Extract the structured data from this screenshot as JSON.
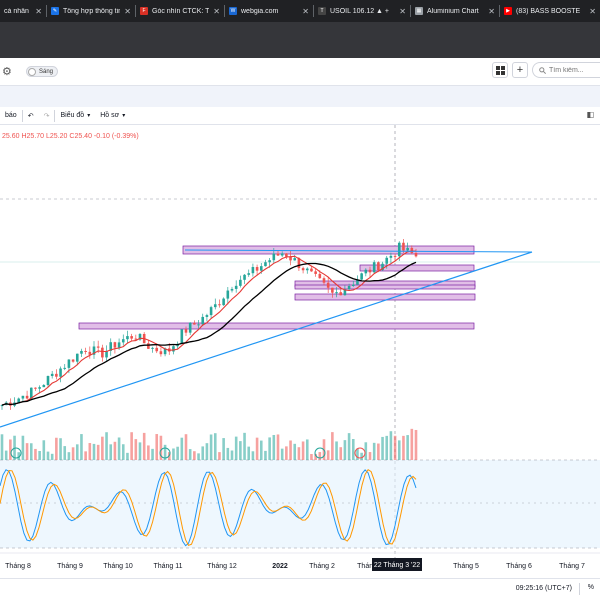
{
  "browser": {
    "tabs": [
      {
        "label": "cá nhân",
        "color": "#5f6368",
        "icon": "page-icon"
      },
      {
        "label": "Tổng hợp thông tin",
        "color": "#1a73e8",
        "icon": "quill-icon"
      },
      {
        "label": "Góc nhìn CTCK: Thị",
        "color": "#d93025",
        "icon": "f-logo-icon"
      },
      {
        "label": "webgia.com",
        "color": "#1967d2",
        "icon": "wg-logo-icon"
      },
      {
        "label": "USOIL 106.12 ▲ +",
        "color": "#2f2f2f",
        "icon": "tv-logo-icon"
      },
      {
        "label": "Aluminium Chart",
        "color": "#9aa0a6",
        "icon": "chart-icon"
      },
      {
        "label": "(83) BASS BOOSTE",
        "color": "#ff0000",
        "icon": "youtube-icon"
      }
    ]
  },
  "header": {
    "toggle_label": "Sáng",
    "search_placeholder": "Tìm kiếm...",
    "add_label": "+"
  },
  "toolbar": {
    "alert_label": "báo",
    "chart_label": "Biểu đồ",
    "profile_label": "Hồ sơ"
  },
  "ohlc": {
    "open": "25.60",
    "high": "H25.70",
    "low": "L25.20",
    "close": "C25.40",
    "change": "-0.10 (-0.39%)"
  },
  "chart_data": {
    "type": "candlestick",
    "x_ticks": [
      "Tháng 8",
      "Tháng 9",
      "Tháng 10",
      "Tháng 11",
      "Tháng 12",
      "2022",
      "Tháng 2",
      "Tháng 4",
      "Tháng 5",
      "Tháng 6",
      "Tháng 7"
    ],
    "crosshair_date": "22 Tháng 3 '22",
    "close_trend": [
      10.5,
      11.2,
      12.0,
      13.4,
      14.8,
      16.2,
      15.6,
      16.8,
      17.5,
      16.2,
      15.8,
      17.9,
      19.0,
      20.6,
      22.8,
      23.6,
      24.9,
      25.8,
      24.5,
      23.0,
      21.5,
      22.6,
      23.8,
      24.8,
      26.2,
      25.4
    ],
    "ma_colors": {
      "fast": "#e53935",
      "slow": "#000000"
    },
    "trendline_color": "#2196f3",
    "zone_color": "#e1bee7",
    "up_color": "#26a69a",
    "down_color": "#ef5350",
    "stoch_colors": {
      "k": "#2196f3",
      "d": "#ff9800"
    },
    "grid": false
  },
  "status": {
    "clock": "09:25:16 (UTC+7)",
    "percent_label": "%"
  }
}
